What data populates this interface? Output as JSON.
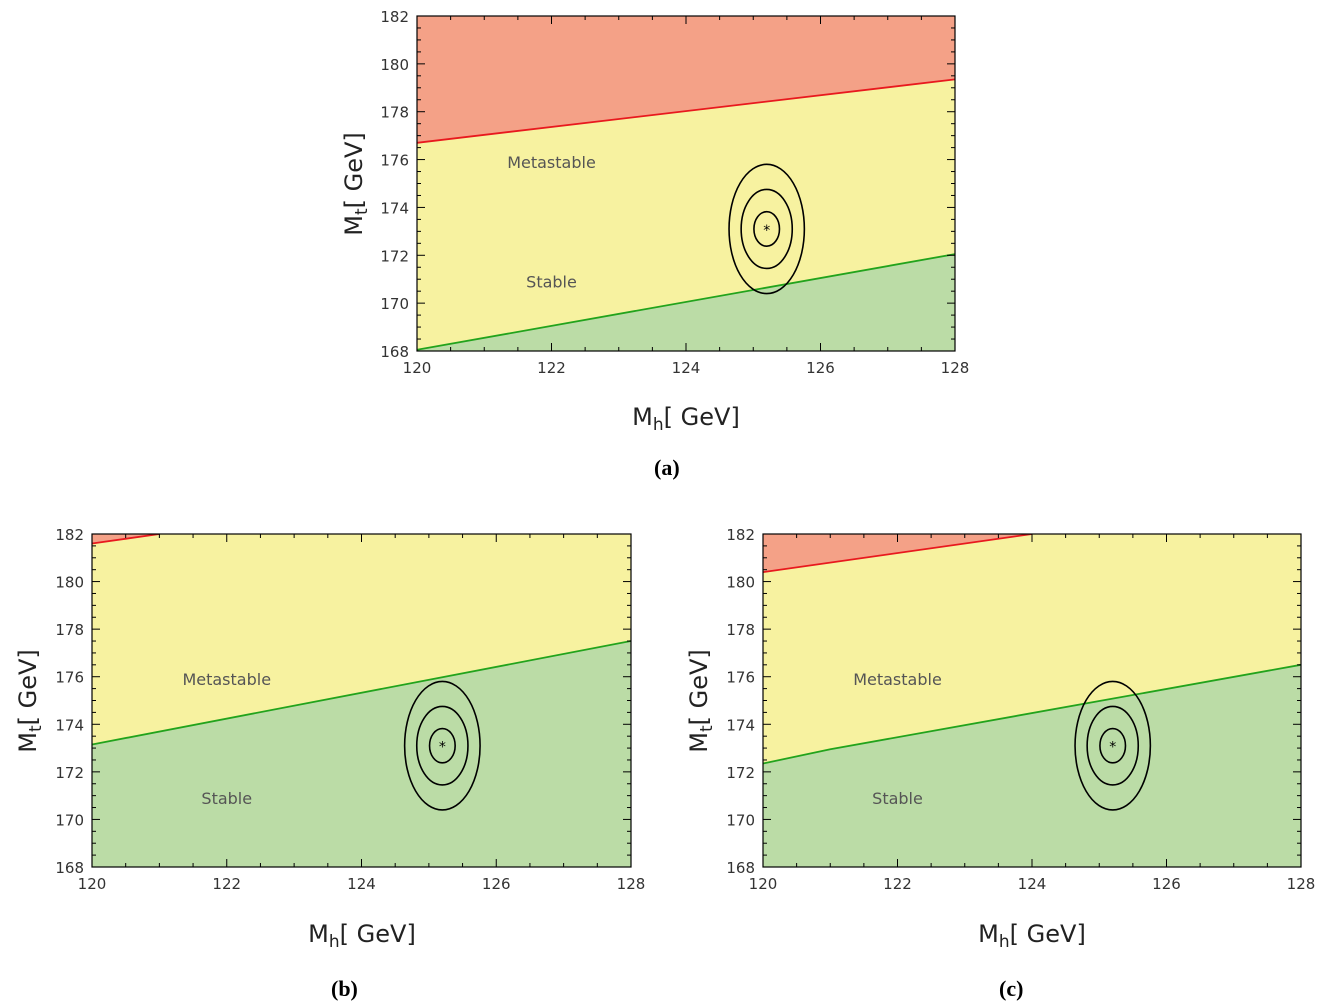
{
  "figure": {
    "panels": [
      {
        "caption": "(a)"
      },
      {
        "caption": "(b)"
      },
      {
        "caption": "(c)"
      }
    ]
  },
  "chart_data": [
    {
      "type": "area",
      "panel": "(a)",
      "xlabel": "M_h [ GeV]",
      "ylabel": "M_t [ GeV]",
      "xlim": [
        120,
        128
      ],
      "ylim": [
        168,
        182
      ],
      "xticks": [
        120,
        122,
        124,
        126,
        128
      ],
      "yticks": [
        168,
        170,
        172,
        174,
        176,
        178,
        180,
        182
      ],
      "regions": [
        {
          "name": "Instability",
          "color": "#f4a187"
        },
        {
          "name": "Metastable",
          "color": "#f7f2a0"
        },
        {
          "name": "Stable",
          "color": "#bbdca6"
        }
      ],
      "lines": [
        {
          "name": "instability-boundary",
          "color": "#e8191e",
          "x": [
            120,
            128
          ],
          "y": [
            176.7,
            179.35
          ]
        },
        {
          "name": "stability-boundary",
          "color": "#22a31c",
          "x": [
            120,
            128
          ],
          "y": [
            168.05,
            172.05
          ]
        }
      ],
      "region_labels": [
        {
          "text": "Metastable",
          "x": 122.0,
          "y": 175.9
        },
        {
          "text": "Stable",
          "x": 122.0,
          "y": 170.9
        }
      ],
      "best_fit": {
        "x": 125.2,
        "y": 173.1,
        "marker": "*"
      },
      "contours": [
        {
          "sigma": 1,
          "rx": 0.19,
          "ry": 0.72
        },
        {
          "sigma": 2,
          "rx": 0.38,
          "ry": 1.65
        },
        {
          "sigma": 3,
          "rx": 0.56,
          "ry": 2.7
        }
      ]
    },
    {
      "type": "area",
      "panel": "(b)",
      "xlabel": "M_h [ GeV]",
      "ylabel": "M_t [ GeV]",
      "xlim": [
        120,
        128
      ],
      "ylim": [
        168,
        182
      ],
      "xticks": [
        120,
        122,
        124,
        126,
        128
      ],
      "yticks": [
        168,
        170,
        172,
        174,
        176,
        178,
        180,
        182
      ],
      "regions": [
        {
          "name": "Instability",
          "color": "#f4a187"
        },
        {
          "name": "Metastable",
          "color": "#f7f2a0"
        },
        {
          "name": "Stable",
          "color": "#bbdca6"
        }
      ],
      "lines": [
        {
          "name": "instability-boundary",
          "color": "#e8191e",
          "x": [
            120,
            121
          ],
          "y": [
            181.6,
            182.0
          ]
        },
        {
          "name": "stability-boundary",
          "color": "#22a31c",
          "x": [
            120,
            128
          ],
          "y": [
            173.15,
            177.5
          ]
        }
      ],
      "region_labels": [
        {
          "text": "Metastable",
          "x": 122.0,
          "y": 175.9
        },
        {
          "text": "Stable",
          "x": 122.0,
          "y": 170.9
        }
      ],
      "best_fit": {
        "x": 125.2,
        "y": 173.1,
        "marker": "*"
      },
      "contours": [
        {
          "sigma": 1,
          "rx": 0.19,
          "ry": 0.72
        },
        {
          "sigma": 2,
          "rx": 0.38,
          "ry": 1.65
        },
        {
          "sigma": 3,
          "rx": 0.56,
          "ry": 2.7
        }
      ]
    },
    {
      "type": "area",
      "panel": "(c)",
      "xlabel": "M_h [ GeV]",
      "ylabel": "M_t [ GeV]",
      "xlim": [
        120,
        128
      ],
      "ylim": [
        168,
        182
      ],
      "xticks": [
        120,
        122,
        124,
        126,
        128
      ],
      "yticks": [
        168,
        170,
        172,
        174,
        176,
        178,
        180,
        182
      ],
      "regions": [
        {
          "name": "Instability",
          "color": "#f4a187"
        },
        {
          "name": "Metastable",
          "color": "#f7f2a0"
        },
        {
          "name": "Stable",
          "color": "#bbdca6"
        }
      ],
      "lines": [
        {
          "name": "instability-boundary",
          "color": "#e8191e",
          "x": [
            120,
            124
          ],
          "y": [
            180.4,
            182.0
          ]
        },
        {
          "name": "stability-boundary",
          "color": "#22a31c",
          "x": [
            120,
            121,
            128
          ],
          "y": [
            172.35,
            172.95,
            176.5
          ]
        }
      ],
      "region_labels": [
        {
          "text": "Metastable",
          "x": 122.0,
          "y": 175.9
        },
        {
          "text": "Stable",
          "x": 122.0,
          "y": 170.9
        }
      ],
      "best_fit": {
        "x": 125.2,
        "y": 173.1,
        "marker": "*"
      },
      "contours": [
        {
          "sigma": 1,
          "rx": 0.19,
          "ry": 0.72
        },
        {
          "sigma": 2,
          "rx": 0.38,
          "ry": 1.65
        },
        {
          "sigma": 3,
          "rx": 0.56,
          "ry": 2.7
        }
      ]
    }
  ]
}
